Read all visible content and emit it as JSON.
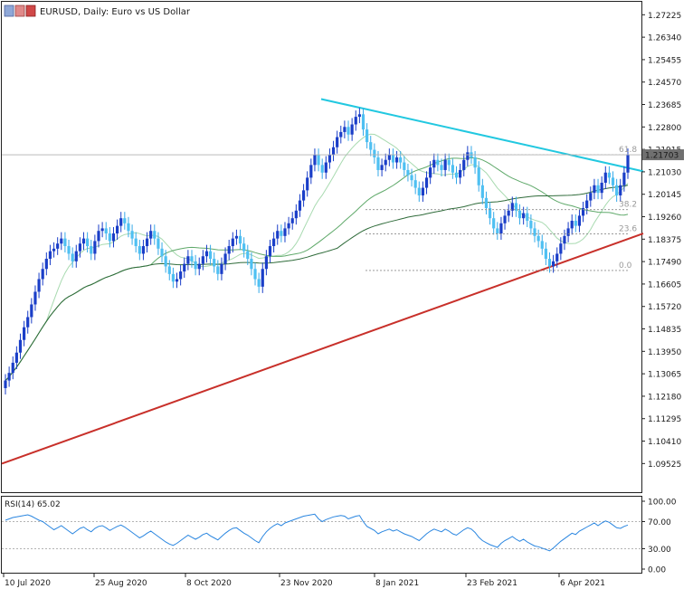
{
  "header": {
    "symbol_text": "EURUSD, Daily:  Euro vs US Dollar"
  },
  "chart_data": {
    "type": "candlestick",
    "price_axis_ticks": [
      "1.27225",
      "1.26340",
      "1.25455",
      "1.24570",
      "1.23685",
      "1.22800",
      "1.21915",
      "1.21030",
      "1.20145",
      "1.19260",
      "1.18375",
      "1.17490",
      "1.16605",
      "1.15720",
      "1.14835",
      "1.13950",
      "1.13065",
      "1.12180",
      "1.11295",
      "1.10410",
      "1.09525"
    ],
    "date_ticks": [
      "10 Jul 2020",
      "25 Aug 2020",
      "8 Oct 2020",
      "23 Nov 2020",
      "8 Jan 2021",
      "23 Feb 2021",
      "6 Apr 2021"
    ],
    "current_price_label": "1.21703",
    "current_price": 1.21703,
    "price_range": [
      1.0918,
      1.2745
    ],
    "fibonacci": [
      {
        "level": "61.8",
        "price": 1.217
      },
      {
        "level": "38.2",
        "price": 1.1954
      },
      {
        "level": "23.6",
        "price": 1.1858
      },
      {
        "level": "0.0",
        "price": 1.1714
      }
    ],
    "close_series": [
      1.128,
      1.131,
      1.135,
      1.139,
      1.144,
      1.149,
      1.153,
      1.158,
      1.163,
      1.168,
      1.172,
      1.176,
      1.179,
      1.18,
      1.182,
      1.184,
      1.181,
      1.178,
      1.175,
      1.179,
      1.182,
      1.184,
      1.181,
      1.178,
      1.183,
      1.187,
      1.188,
      1.186,
      1.183,
      1.186,
      1.189,
      1.192,
      1.19,
      1.187,
      1.184,
      1.181,
      1.178,
      1.181,
      1.184,
      1.187,
      1.184,
      1.18,
      1.177,
      1.173,
      1.17,
      1.167,
      1.168,
      1.171,
      1.174,
      1.177,
      1.175,
      1.172,
      1.174,
      1.177,
      1.179,
      1.176,
      1.173,
      1.17,
      1.174,
      1.178,
      1.181,
      1.184,
      1.185,
      1.182,
      1.179,
      1.176,
      1.172,
      1.168,
      1.165,
      1.172,
      1.177,
      1.181,
      1.184,
      1.187,
      1.185,
      1.188,
      1.19,
      1.192,
      1.195,
      1.199,
      1.203,
      1.208,
      1.213,
      1.217,
      1.213,
      1.21,
      1.214,
      1.217,
      1.22,
      1.224,
      1.226,
      1.228,
      1.225,
      1.229,
      1.232,
      1.233,
      1.227,
      1.222,
      1.219,
      1.216,
      1.211,
      1.213,
      1.215,
      1.217,
      1.214,
      1.216,
      1.214,
      1.211,
      1.209,
      1.207,
      1.204,
      1.201,
      1.204,
      1.208,
      1.212,
      1.215,
      1.213,
      1.211,
      1.215,
      1.213,
      1.21,
      1.208,
      1.211,
      1.215,
      1.218,
      1.216,
      1.212,
      1.205,
      1.2,
      1.196,
      1.192,
      1.188,
      1.186,
      1.19,
      1.193,
      1.195,
      1.198,
      1.195,
      1.192,
      1.194,
      1.191,
      1.188,
      1.185,
      1.183,
      1.18,
      1.176,
      1.173,
      1.175,
      1.178,
      1.182,
      1.185,
      1.188,
      1.191,
      1.189,
      1.193,
      1.196,
      1.199,
      1.202,
      1.205,
      1.202,
      1.206,
      1.21,
      1.208,
      1.205,
      1.201,
      1.205,
      1.21,
      1.217
    ],
    "rsi": {
      "label": "RSI(14) 65.02",
      "value": 65.02,
      "axis_ticks": [
        "100.00",
        "70.00",
        "30.00",
        "0.00"
      ],
      "levels": [
        70,
        30
      ],
      "values": [
        72,
        74,
        76,
        77,
        78,
        79,
        80,
        78,
        75,
        72,
        70,
        66,
        62,
        58,
        61,
        64,
        60,
        56,
        52,
        56,
        60,
        62,
        58,
        55,
        60,
        63,
        64,
        61,
        57,
        60,
        63,
        65,
        62,
        58,
        54,
        50,
        46,
        49,
        53,
        56,
        52,
        48,
        44,
        40,
        37,
        35,
        38,
        42,
        46,
        50,
        47,
        44,
        47,
        51,
        53,
        49,
        46,
        43,
        48,
        53,
        57,
        60,
        61,
        57,
        53,
        50,
        46,
        42,
        39,
        48,
        55,
        60,
        64,
        67,
        64,
        68,
        70,
        72,
        74,
        76,
        78,
        79,
        80,
        81,
        74,
        70,
        73,
        75,
        77,
        78,
        79,
        78,
        74,
        76,
        78,
        79,
        70,
        63,
        60,
        57,
        52,
        55,
        57,
        59,
        56,
        58,
        55,
        52,
        50,
        48,
        45,
        42,
        47,
        52,
        56,
        59,
        57,
        55,
        59,
        56,
        52,
        50,
        54,
        58,
        61,
        59,
        54,
        47,
        42,
        39,
        36,
        34,
        32,
        38,
        42,
        45,
        48,
        44,
        41,
        44,
        40,
        37,
        34,
        33,
        31,
        29,
        27,
        31,
        36,
        41,
        45,
        49,
        53,
        51,
        56,
        59,
        62,
        65,
        68,
        64,
        68,
        71,
        69,
        65,
        61,
        60,
        63,
        65
      ]
    }
  }
}
